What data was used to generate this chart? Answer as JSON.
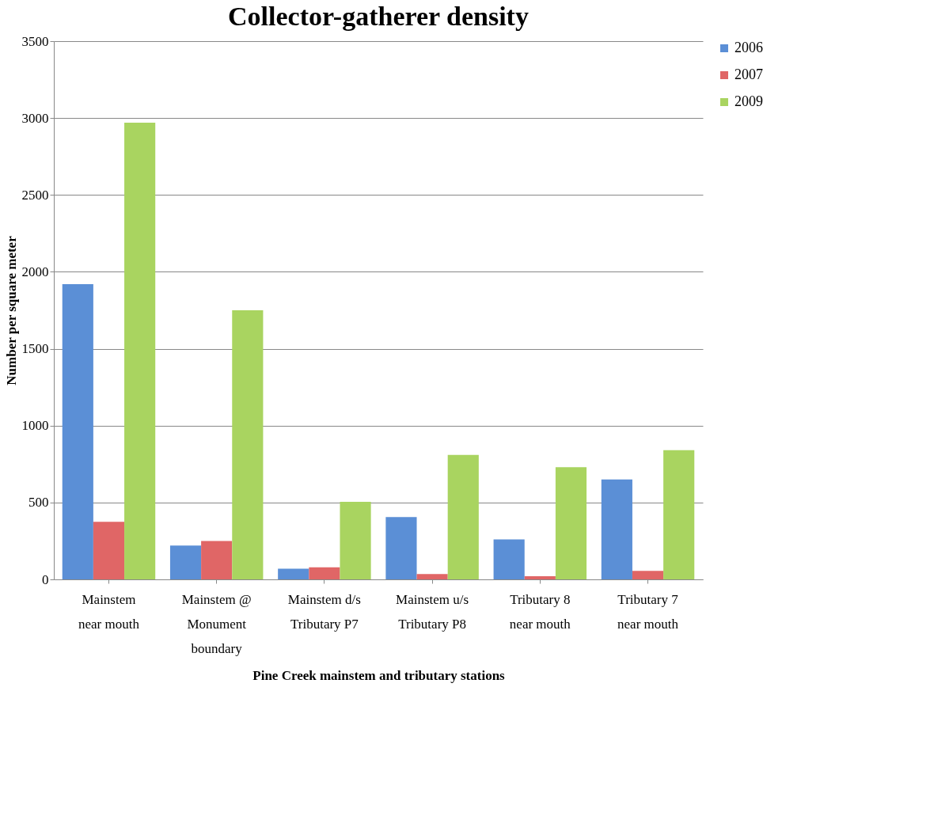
{
  "chart_data": {
    "type": "bar",
    "title": "Collector-gatherer density",
    "xlabel": "Pine Creek mainstem and tributary stations",
    "ylabel": "Number per square meter",
    "categories": [
      "Mainstem near mouth",
      "Mainstem @ Monument boundary",
      "Mainstem d/s Tributary P7",
      "Mainstem u/s Tributary P8",
      "Tributary 8 near mouth",
      "Tributary 7 near mouth"
    ],
    "series": [
      {
        "name": "2006",
        "color": "#5b8fd6",
        "values": [
          1920,
          220,
          70,
          405,
          260,
          650
        ]
      },
      {
        "name": "2007",
        "color": "#e06666",
        "values": [
          375,
          250,
          78,
          35,
          20,
          55
        ]
      },
      {
        "name": "2009",
        "color": "#a9d460",
        "values": [
          2970,
          1750,
          505,
          810,
          730,
          840
        ]
      }
    ],
    "ylim": [
      0,
      3500
    ],
    "yticks": [
      0,
      500,
      1000,
      1500,
      2000,
      2500,
      3000,
      3500
    ],
    "grid": "y",
    "legend": "right"
  }
}
